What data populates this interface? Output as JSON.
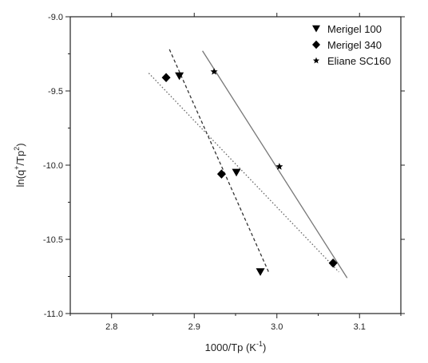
{
  "chart_data": {
    "type": "scatter",
    "title": "",
    "xlabel": {
      "base": "1000/Tp (K",
      "sup": "-1",
      "tail": ")"
    },
    "ylabel": {
      "base": "ln(q",
      "sup1": "+",
      "mid": "/Tp",
      "sup2": "2",
      "tail": ")"
    },
    "xlim": [
      2.75,
      3.15
    ],
    "ylim": [
      -11.0,
      -9.0
    ],
    "xticks": [
      2.8,
      2.9,
      3.0,
      3.1
    ],
    "xtick_labels": [
      "2.8",
      "2.9",
      "3.0",
      "3.1"
    ],
    "yticks": [
      -11.0,
      -10.5,
      -10.0,
      -9.5,
      -9.0
    ],
    "ytick_labels": [
      "-11.0",
      "-10.5",
      "-10.0",
      "-9.5",
      "-9.0"
    ],
    "grid": false,
    "legend_position": "top-right",
    "series": [
      {
        "name": "Merigel 100",
        "marker": "triangle-down",
        "line_style": "dashed",
        "points": [
          {
            "x": 2.882,
            "y": -9.4
          },
          {
            "x": 2.951,
            "y": -10.05
          },
          {
            "x": 2.98,
            "y": -10.72
          }
        ],
        "fit": [
          {
            "x": 2.87,
            "y": -9.22
          },
          {
            "x": 2.99,
            "y": -10.72
          }
        ]
      },
      {
        "name": "Merigel 340",
        "marker": "diamond",
        "line_style": "dotted",
        "points": [
          {
            "x": 2.866,
            "y": -9.41
          },
          {
            "x": 2.933,
            "y": -10.06
          },
          {
            "x": 3.068,
            "y": -10.66
          }
        ],
        "fit": [
          {
            "x": 2.845,
            "y": -9.38
          },
          {
            "x": 3.075,
            "y": -10.72
          }
        ]
      },
      {
        "name": "Eliane SC160",
        "marker": "star",
        "line_style": "solid",
        "points": [
          {
            "x": 2.924,
            "y": -9.37
          },
          {
            "x": 3.003,
            "y": -10.01
          },
          {
            "x": 3.068,
            "y": -10.66
          }
        ],
        "fit": [
          {
            "x": 2.91,
            "y": -9.23
          },
          {
            "x": 3.085,
            "y": -10.76
          }
        ]
      }
    ]
  }
}
